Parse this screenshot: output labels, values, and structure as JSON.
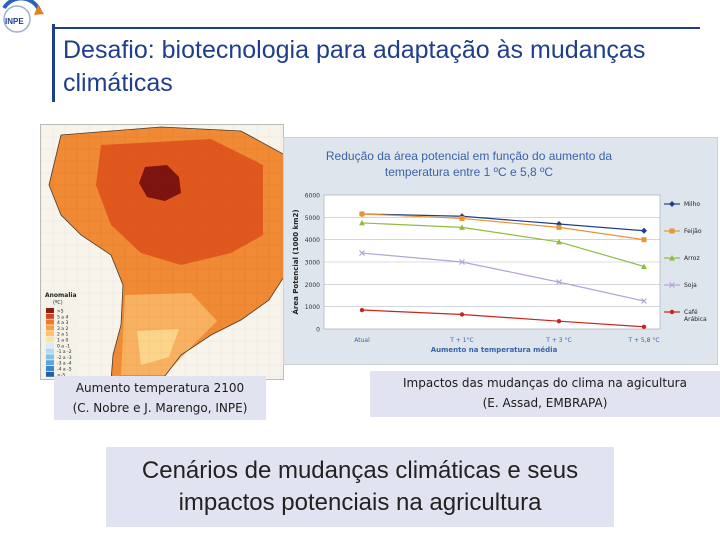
{
  "slide": {
    "title": "Desafio: biotecnologia para adaptação às mudanças climáticas",
    "logo_text": "INPE",
    "map_caption_line1": "Aumento temperatura 2100",
    "map_caption_line2": "(C. Nobre e J. Marengo, INPE)",
    "chart_caption_line1": "Impactos das mudanças do clima na agicultura",
    "chart_caption_line2": "(E. Assad, EMBRAPA)",
    "bottom_line1": "Cenários de mudanças climáticas e seus",
    "bottom_line2": "impactos potenciais na agricultura"
  },
  "map": {
    "legend_title": "Anomalia",
    "legend_unit": "(ºC)",
    "legend_labels": [
      ">5",
      "5 a 4",
      "4 a 3",
      "3 a 2",
      "2 a 1",
      "1 a 0",
      "0 a -1",
      "-1 a -2",
      "-2 a -3",
      "-3 a -4",
      "-4 a -5",
      "<-5"
    ],
    "legend_colors": [
      "#8b1a10",
      "#d8421d",
      "#ef7a2c",
      "#f6a045",
      "#fbc36b",
      "#fde3a4",
      "#d7ecf8",
      "#b0d8f0",
      "#82c0e6",
      "#5aa6da",
      "#3a86c6",
      "#1f5fa8"
    ]
  },
  "chart_data": {
    "type": "line",
    "title_line1": "Redução da área potencial em função do aumento da",
    "title_line2": "temperatura entre 1 ºC e 5,8 ºC",
    "xlabel": "Aumento na temperatura média",
    "ylabel": "Área Potencial (1000 km2)",
    "categories": [
      "Atual",
      "T + 1°C",
      "T + 3 °C",
      "T + 5,8 °C"
    ],
    "ylim": [
      0,
      6000
    ],
    "yticks": [
      0,
      1000,
      2000,
      3000,
      4000,
      5000,
      6000
    ],
    "legend_position": "right",
    "grid": true,
    "series": [
      {
        "name": "Milho",
        "color": "#1f3f8c",
        "marker": "diamond",
        "values": [
          5150,
          5050,
          4700,
          4400
        ]
      },
      {
        "name": "Feijão",
        "color": "#e8952e",
        "marker": "square",
        "values": [
          5150,
          4950,
          4550,
          4000
        ]
      },
      {
        "name": "Arroz",
        "color": "#8fbd3e",
        "marker": "triangle",
        "values": [
          4750,
          4550,
          3900,
          2800
        ]
      },
      {
        "name": "Soja",
        "color": "#b3a4d6",
        "marker": "cross",
        "values": [
          3400,
          3000,
          2100,
          1250
        ]
      },
      {
        "name": "Café Arábica",
        "color": "#c8261c",
        "marker": "circle",
        "values": [
          850,
          650,
          350,
          100
        ]
      }
    ]
  }
}
